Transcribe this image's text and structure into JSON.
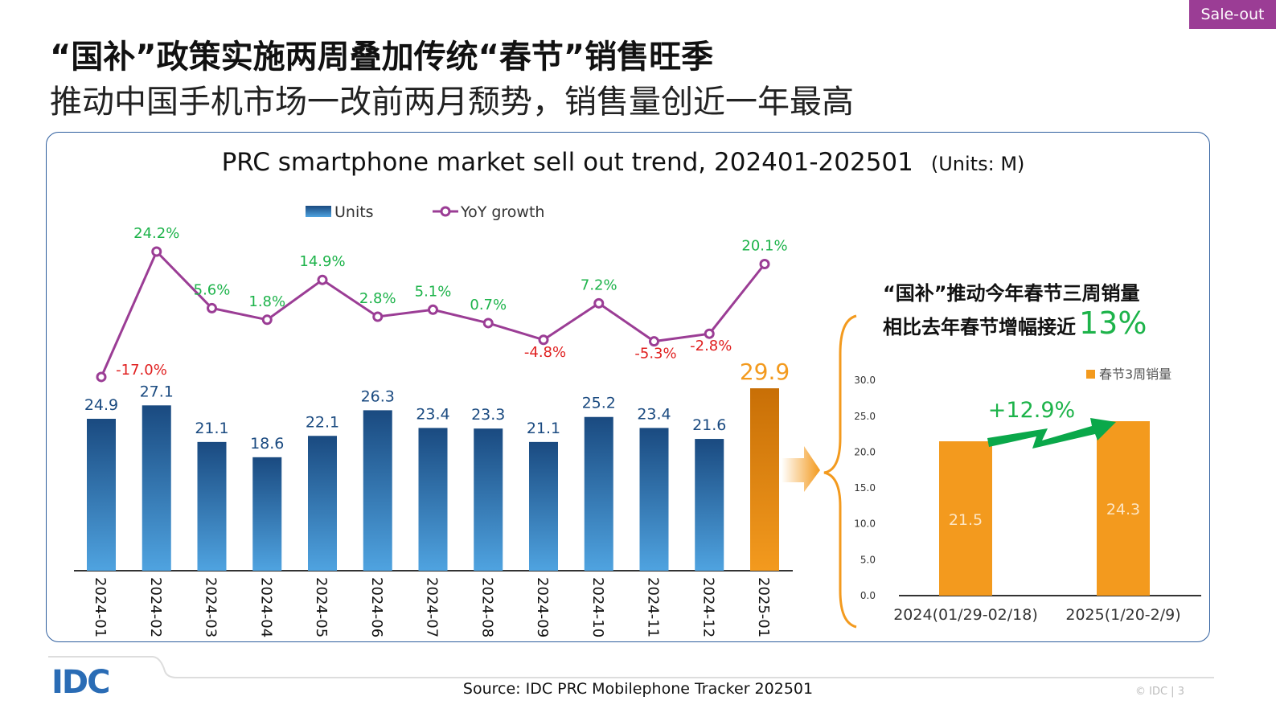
{
  "tag": "Sale-out",
  "title_line1": "“国补”政策实施两周叠加传统“春节”销售旺季",
  "title_line2": "推动中国手机市场一改前两月颓势，销售量创近一年最高",
  "highlight": {
    "line1": "“国补”推动今年春节三周销量",
    "line2": "相比去年春节增幅接近",
    "pct": "13%"
  },
  "footer": {
    "source": "Source: IDC PRC Mobilephone Tracker 202501",
    "copyright": "© IDC |  3",
    "logo": "IDC"
  },
  "colors": {
    "bar_blue_top": "#1a4a80",
    "bar_blue_bottom": "#4fa3e0",
    "bar_orange": "#f39a1e",
    "line": "#9b3d95",
    "pos": "#1db34a",
    "neg": "#e02020",
    "accent": "#9b3d95"
  },
  "chart_data": [
    {
      "type": "bar+line",
      "title": "PRC smartphone market sell out trend, 202401-202501",
      "units": "(Units: M)",
      "legend": [
        "Units",
        "YoY growth"
      ],
      "categories": [
        "2024-01",
        "2024-02",
        "2024-03",
        "2024-04",
        "2024-05",
        "2024-06",
        "2024-07",
        "2024-08",
        "2024-09",
        "2024-10",
        "2024-11",
        "2024-12",
        "2025-01"
      ],
      "series": [
        {
          "name": "Units",
          "values": [
            24.9,
            27.1,
            21.1,
            18.6,
            22.1,
            26.3,
            23.4,
            23.3,
            21.1,
            25.2,
            23.4,
            21.6,
            29.9
          ]
        },
        {
          "name": "YoY growth",
          "values": [
            -17.0,
            24.2,
            5.6,
            1.8,
            14.9,
            2.8,
            5.1,
            0.7,
            -4.8,
            7.2,
            -5.3,
            -2.8,
            20.1
          ],
          "labels": [
            "-17.0%",
            "24.2%",
            "5.6%",
            "1.8%",
            "14.9%",
            "2.8%",
            "5.1%",
            "0.7%",
            "-4.8%",
            "7.2%",
            "-5.3%",
            "-2.8%",
            "20.1%"
          ]
        }
      ]
    },
    {
      "type": "bar",
      "legend": [
        "春节3周销量"
      ],
      "categories": [
        "2024(01/29-02/18)",
        "2025(1/20-2/9)"
      ],
      "values": [
        21.5,
        24.3
      ],
      "ylim": [
        0,
        30
      ],
      "yticks": [
        "0.0",
        "5.0",
        "10.0",
        "15.0",
        "20.0",
        "25.0",
        "30.0"
      ],
      "annotation": "+12.9%"
    }
  ]
}
